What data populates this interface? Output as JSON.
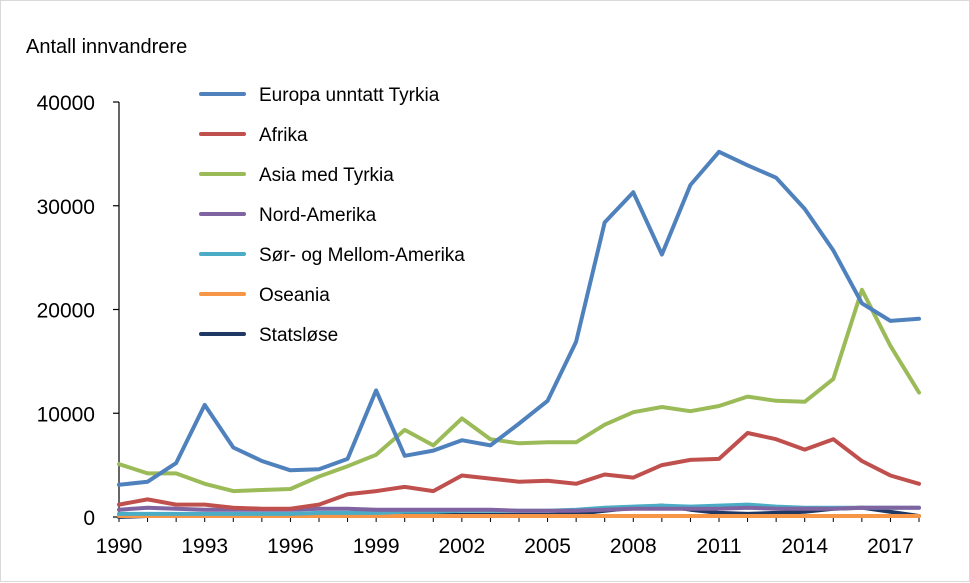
{
  "chart_data": {
    "type": "line",
    "title": "",
    "ylabel": "Antall innvandrere",
    "xlabel": "",
    "ylim": [
      0,
      40000
    ],
    "yticks": [
      0,
      10000,
      20000,
      30000,
      40000
    ],
    "xlim": [
      1990,
      2018
    ],
    "xticks": [
      1990,
      1993,
      1996,
      1999,
      2002,
      2005,
      2008,
      2011,
      2014,
      2017
    ],
    "grid": false,
    "legend_position": "top-center",
    "x": [
      1990,
      1991,
      1992,
      1993,
      1994,
      1995,
      1996,
      1997,
      1998,
      1999,
      2000,
      2001,
      2002,
      2003,
      2004,
      2005,
      2006,
      2007,
      2008,
      2009,
      2010,
      2011,
      2012,
      2013,
      2014,
      2015,
      2016,
      2017,
      2018
    ],
    "series": [
      {
        "name": "Europa unntatt Tyrkia",
        "color": "#4f81bd",
        "values": [
          3100,
          3400,
          5200,
          10800,
          6700,
          5400,
          4500,
          4600,
          5600,
          12200,
          5900,
          6400,
          7400,
          6900,
          9000,
          11200,
          16900,
          28400,
          31300,
          25300,
          32000,
          35200,
          33900,
          32700,
          29700,
          25700,
          20600,
          18900,
          19100
        ]
      },
      {
        "name": "Afrika",
        "color": "#c0504d",
        "values": [
          1200,
          1700,
          1200,
          1200,
          900,
          800,
          800,
          1200,
          2200,
          2500,
          2900,
          2500,
          4000,
          3700,
          3400,
          3500,
          3200,
          4100,
          3800,
          5000,
          5500,
          5600,
          8100,
          7500,
          6500,
          7500,
          5400,
          4000,
          3200
        ]
      },
      {
        "name": "Asia med Tyrkia",
        "color": "#9bbb59",
        "values": [
          5100,
          4200,
          4200,
          3200,
          2500,
          2600,
          2700,
          3900,
          4900,
          6000,
          8400,
          6900,
          9500,
          7500,
          7100,
          7200,
          7200,
          8900,
          10100,
          10600,
          10200,
          10700,
          11600,
          11200,
          11100,
          13300,
          21900,
          16500,
          12000
        ]
      },
      {
        "name": "Nord-Amerika",
        "color": "#8064a2",
        "values": [
          700,
          900,
          800,
          700,
          700,
          700,
          700,
          800,
          800,
          700,
          700,
          700,
          700,
          700,
          600,
          600,
          600,
          700,
          800,
          800,
          800,
          800,
          900,
          800,
          800,
          800,
          900,
          900,
          900
        ]
      },
      {
        "name": "Sør- og Mellom-Amerika",
        "color": "#4bacc6",
        "values": [
          300,
          300,
          300,
          300,
          300,
          300,
          300,
          400,
          400,
          400,
          500,
          500,
          600,
          600,
          600,
          600,
          700,
          900,
          1000,
          1100,
          1000,
          1100,
          1200,
          1000,
          900,
          900,
          900,
          900,
          900
        ]
      },
      {
        "name": "Oseania",
        "color": "#f79646",
        "values": [
          100,
          100,
          100,
          100,
          100,
          100,
          100,
          100,
          100,
          100,
          100,
          100,
          100,
          100,
          100,
          100,
          100,
          100,
          100,
          100,
          100,
          100,
          100,
          100,
          100,
          100,
          100,
          100,
          100
        ]
      },
      {
        "name": "Statsløse",
        "color": "#1f3864",
        "values": [
          0,
          100,
          100,
          100,
          100,
          100,
          100,
          100,
          100,
          100,
          200,
          200,
          200,
          200,
          200,
          200,
          300,
          600,
          900,
          1100,
          700,
          400,
          300,
          400,
          500,
          800,
          900,
          500,
          100
        ]
      }
    ]
  }
}
